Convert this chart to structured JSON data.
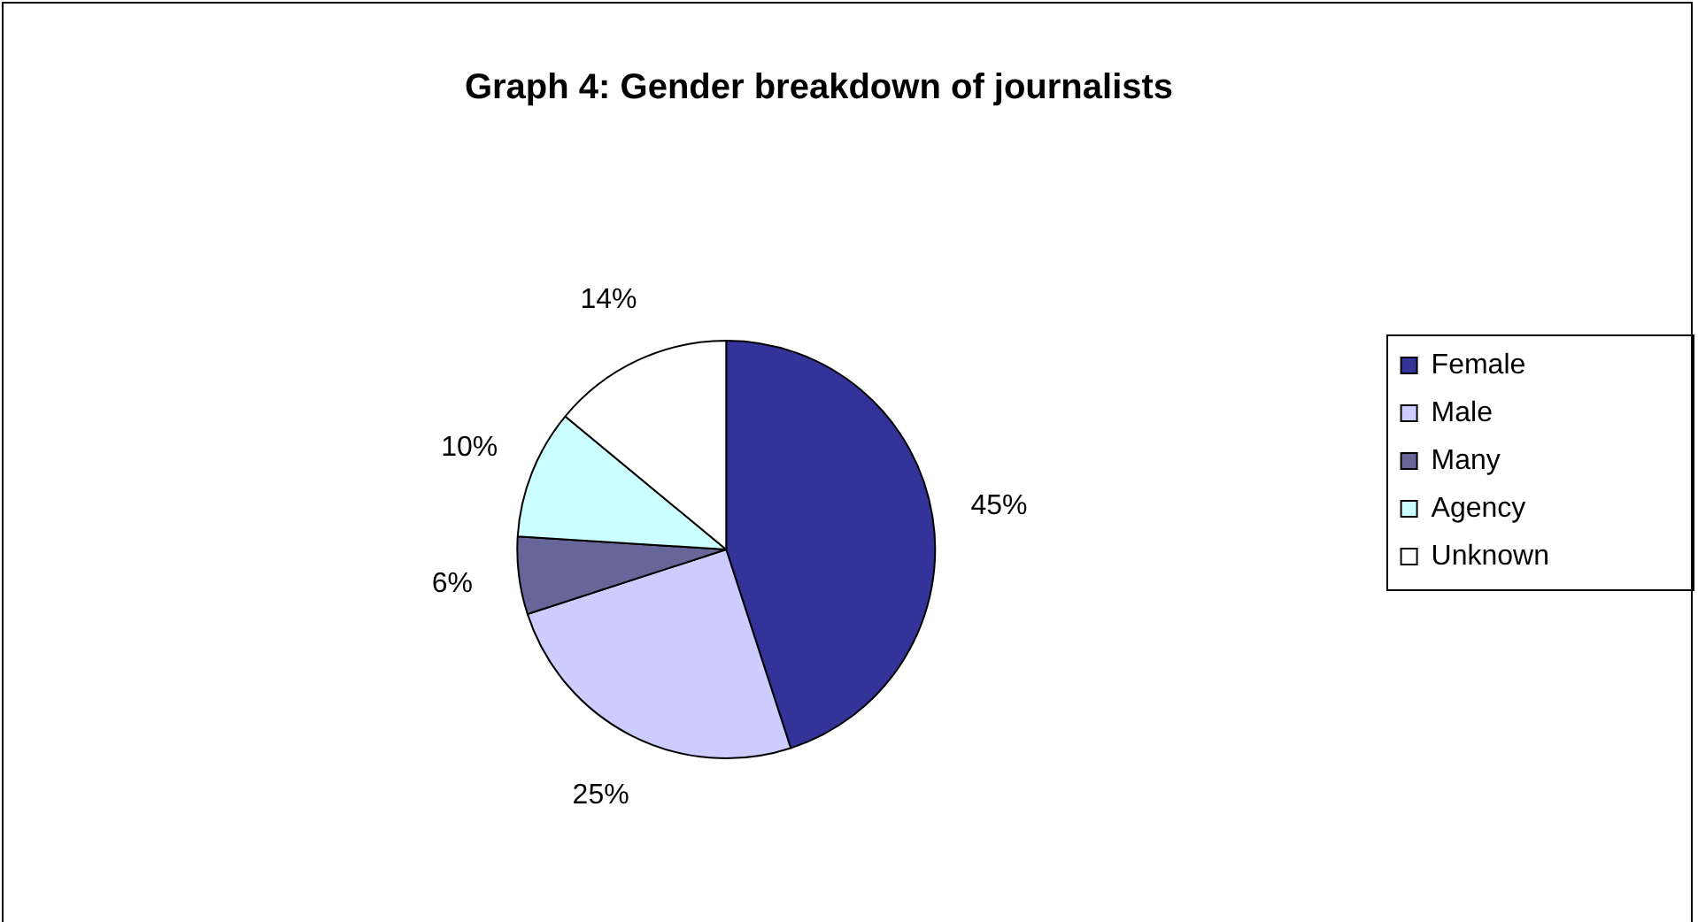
{
  "chart_data": {
    "type": "pie",
    "title": "Graph 4: Gender breakdown of journalists",
    "categories": [
      "Female",
      "Male",
      "Many",
      "Agency",
      "Unknown"
    ],
    "values": [
      45,
      25,
      6,
      10,
      14
    ],
    "colors": [
      "#333399",
      "#ccccff",
      "#666699",
      "#ccffff",
      "#ffffff"
    ],
    "value_labels": [
      "45%",
      "25%",
      "6%",
      "10%",
      "14%"
    ],
    "legend": "right"
  }
}
